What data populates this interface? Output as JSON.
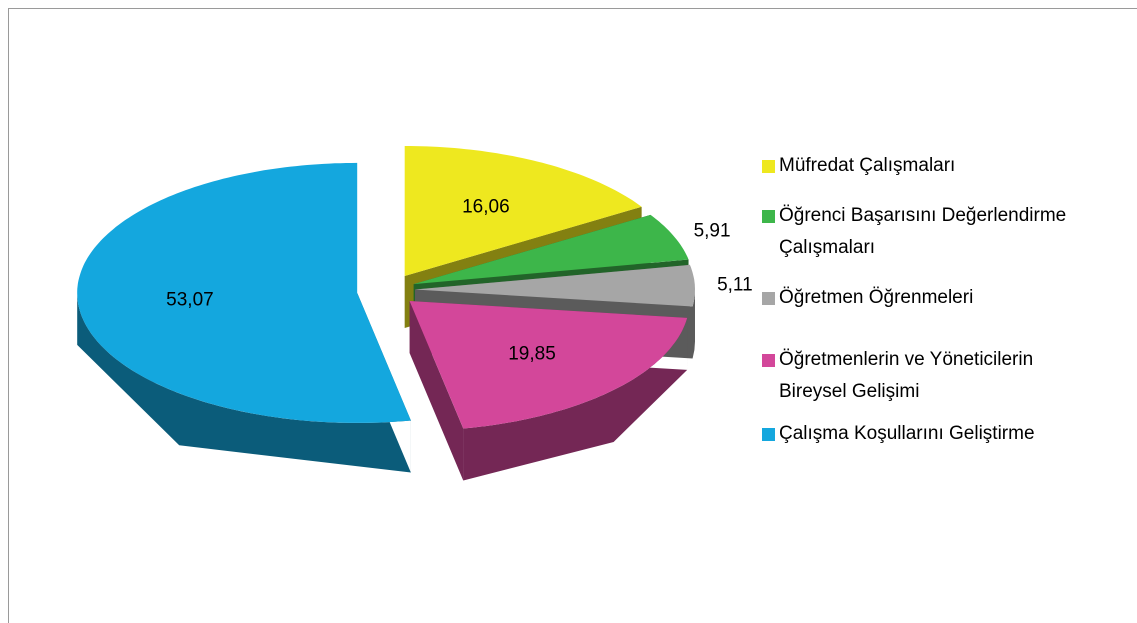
{
  "chart_data": {
    "type": "pie",
    "categories": [
      "Müfredat Çalışmaları",
      "Öğrenci Başarısını Değerlendirme Çalışmaları",
      "Öğretmen Öğrenmeleri",
      "Öğretmenlerin ve Yöneticilerin Bireysel Gelişimi",
      "Çalışma Koşullarını Geliştirme"
    ],
    "values": [
      16.06,
      5.91,
      5.11,
      19.85,
      53.07
    ],
    "value_labels": [
      "16,06",
      "5,91",
      "5,11",
      "19,85",
      "53,07"
    ],
    "colors": [
      "#eee81f",
      "#3db64a",
      "#a6a6a6",
      "#d3479a",
      "#14a7de"
    ],
    "legend": "right"
  }
}
